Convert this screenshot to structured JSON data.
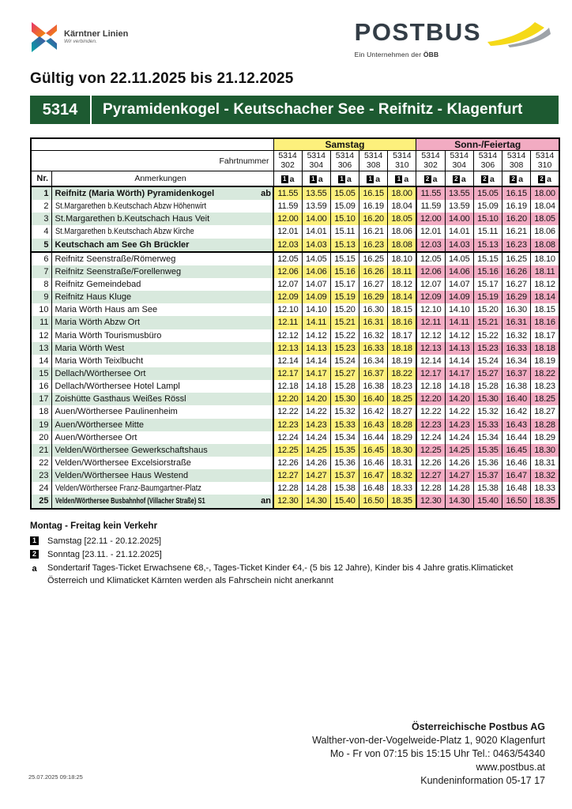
{
  "header": {
    "kl_name": "Kärntner Linien",
    "kl_tagline": "Wir verbinden.",
    "brand": "POSTBUS",
    "brand_sub_prefix": "Ein Unternehmen der ",
    "brand_sub_bold": "ÖBB"
  },
  "validity": "Gültig von 22.11.2025 bis 21.12.2025",
  "route": {
    "number": "5314",
    "name": "Pyramidenkogel - Keutschacher See - Reifnitz - Klagenfurt"
  },
  "colors": {
    "accent_green": "#1d5a31",
    "samstag_yellow": "#fdf07c",
    "sonntag_pink": "#f2abc2",
    "row_green": "#d8e9dd"
  },
  "table": {
    "nr_label": "Nr.",
    "fahrtnummer_label": "Fahrtnummer",
    "anmerkungen_label": "Anmerkungen",
    "groups": [
      {
        "label": "Samstag",
        "badge": "1",
        "note": "a",
        "line": "5314",
        "trips": [
          "302",
          "304",
          "306",
          "308",
          "310"
        ]
      },
      {
        "label": "Sonn-/Feiertag",
        "badge": "2",
        "note": "a",
        "line": "5314",
        "trips": [
          "302",
          "304",
          "306",
          "308",
          "310"
        ]
      }
    ],
    "section_break_after": "5",
    "rows": [
      {
        "nr": "1",
        "name": "Reifnitz (Maria Wörth) Pyramidenkogel",
        "suffix": "ab",
        "bold": true,
        "times": [
          "11.55",
          "13.55",
          "15.05",
          "16.15",
          "18.00"
        ]
      },
      {
        "nr": "2",
        "name": "St.Margarethen b.Keutschach Abzw Höhenwirt",
        "bold": false,
        "times": [
          "11.59",
          "13.59",
          "15.09",
          "16.19",
          "18.04"
        ]
      },
      {
        "nr": "3",
        "name": "St.Margarethen b.Keutschach Haus Veit",
        "bold": false,
        "times": [
          "12.00",
          "14.00",
          "15.10",
          "16.20",
          "18.05"
        ]
      },
      {
        "nr": "4",
        "name": "St.Margarethen b.Keutschach Abzw Kirche",
        "bold": false,
        "times": [
          "12.01",
          "14.01",
          "15.11",
          "16.21",
          "18.06"
        ]
      },
      {
        "nr": "5",
        "name": "Keutschach am See Gh Brückler",
        "bold": true,
        "times": [
          "12.03",
          "14.03",
          "15.13",
          "16.23",
          "18.08"
        ]
      },
      {
        "nr": "6",
        "name": "Reifnitz Seenstraße/Römerweg",
        "bold": false,
        "times": [
          "12.05",
          "14.05",
          "15.15",
          "16.25",
          "18.10"
        ]
      },
      {
        "nr": "7",
        "name": "Reifnitz Seenstraße/Forellenweg",
        "bold": false,
        "times": [
          "12.06",
          "14.06",
          "15.16",
          "16.26",
          "18.11"
        ]
      },
      {
        "nr": "8",
        "name": "Reifnitz Gemeindebad",
        "bold": false,
        "times": [
          "12.07",
          "14.07",
          "15.17",
          "16.27",
          "18.12"
        ]
      },
      {
        "nr": "9",
        "name": "Reifnitz Haus Kluge",
        "bold": false,
        "times": [
          "12.09",
          "14.09",
          "15.19",
          "16.29",
          "18.14"
        ]
      },
      {
        "nr": "10",
        "name": "Maria Wörth Haus am See",
        "bold": false,
        "times": [
          "12.10",
          "14.10",
          "15.20",
          "16.30",
          "18.15"
        ]
      },
      {
        "nr": "11",
        "name": "Maria Wörth Abzw Ort",
        "bold": false,
        "times": [
          "12.11",
          "14.11",
          "15.21",
          "16.31",
          "18.16"
        ]
      },
      {
        "nr": "12",
        "name": "Maria Wörth Tourismusbüro",
        "bold": false,
        "times": [
          "12.12",
          "14.12",
          "15.22",
          "16.32",
          "18.17"
        ]
      },
      {
        "nr": "13",
        "name": "Maria Wörth West",
        "bold": false,
        "times": [
          "12.13",
          "14.13",
          "15.23",
          "16.33",
          "18.18"
        ]
      },
      {
        "nr": "14",
        "name": "Maria Wörth Teixlbucht",
        "bold": false,
        "times": [
          "12.14",
          "14.14",
          "15.24",
          "16.34",
          "18.19"
        ]
      },
      {
        "nr": "15",
        "name": "Dellach/Wörthersee Ort",
        "bold": false,
        "times": [
          "12.17",
          "14.17",
          "15.27",
          "16.37",
          "18.22"
        ]
      },
      {
        "nr": "16",
        "name": "Dellach/Wörthersee Hotel Lampl",
        "bold": false,
        "times": [
          "12.18",
          "14.18",
          "15.28",
          "16.38",
          "18.23"
        ]
      },
      {
        "nr": "17",
        "name": "Zoishütte Gasthaus Weißes Rössl",
        "bold": false,
        "times": [
          "12.20",
          "14.20",
          "15.30",
          "16.40",
          "18.25"
        ]
      },
      {
        "nr": "18",
        "name": "Auen/Wörthersee Paulinenheim",
        "bold": false,
        "times": [
          "12.22",
          "14.22",
          "15.32",
          "16.42",
          "18.27"
        ]
      },
      {
        "nr": "19",
        "name": "Auen/Wörthersee Mitte",
        "bold": false,
        "times": [
          "12.23",
          "14.23",
          "15.33",
          "16.43",
          "18.28"
        ]
      },
      {
        "nr": "20",
        "name": "Auen/Wörthersee Ort",
        "bold": false,
        "times": [
          "12.24",
          "14.24",
          "15.34",
          "16.44",
          "18.29"
        ]
      },
      {
        "nr": "21",
        "name": "Velden/Wörthersee Gewerkschaftshaus",
        "bold": false,
        "times": [
          "12.25",
          "14.25",
          "15.35",
          "16.45",
          "18.30"
        ]
      },
      {
        "nr": "22",
        "name": "Velden/Wörthersee Excelsiorstraße",
        "bold": false,
        "times": [
          "12.26",
          "14.26",
          "15.36",
          "16.46",
          "18.31"
        ]
      },
      {
        "nr": "23",
        "name": "Velden/Wörthersee Haus Westend",
        "bold": false,
        "times": [
          "12.27",
          "14.27",
          "15.37",
          "16.47",
          "18.32"
        ]
      },
      {
        "nr": "24",
        "name": "Velden/Wörthersee Franz-Baumgartner-Platz",
        "bold": false,
        "times": [
          "12.28",
          "14.28",
          "15.38",
          "16.48",
          "18.33"
        ]
      },
      {
        "nr": "25",
        "name": "Velden/Wörthersee Busbahnhof (Villacher Straße) S1",
        "suffix": "an",
        "bold": true,
        "times": [
          "12.30",
          "14.30",
          "15.40",
          "16.50",
          "18.35"
        ]
      }
    ]
  },
  "footnotes": {
    "heading": "Montag - Freitag kein Verkehr",
    "items": [
      {
        "badge": "1",
        "square": true,
        "text": "Samstag [22.11 - 20.12.2025]"
      },
      {
        "badge": "2",
        "square": true,
        "text": "Sonntag [23.11. - 21.12.2025]"
      },
      {
        "badge": "a",
        "square": false,
        "text": "Sondertarif Tages-Ticket Erwachsene €8,-, Tages-Ticket Kinder €4,- (5 bis 12 Jahre), Kinder bis 4 Jahre gratis.Klimaticket Österreich und Klimaticket Kärnten werden als Fahrschein nicht anerkannt"
      }
    ]
  },
  "footer": {
    "company": "Österreichische Postbus AG",
    "address": "Walther-von-der-Vogelweide-Platz 1, 9020 Klagenfurt",
    "hours": "Mo - Fr  von 07:15 bis 15:15 Uhr  Tel.: 0463/54340",
    "website": "www.postbus.at",
    "info": "Kundeninformation 05-17 17",
    "timestamp": "25.07.2025 09:18:25"
  }
}
